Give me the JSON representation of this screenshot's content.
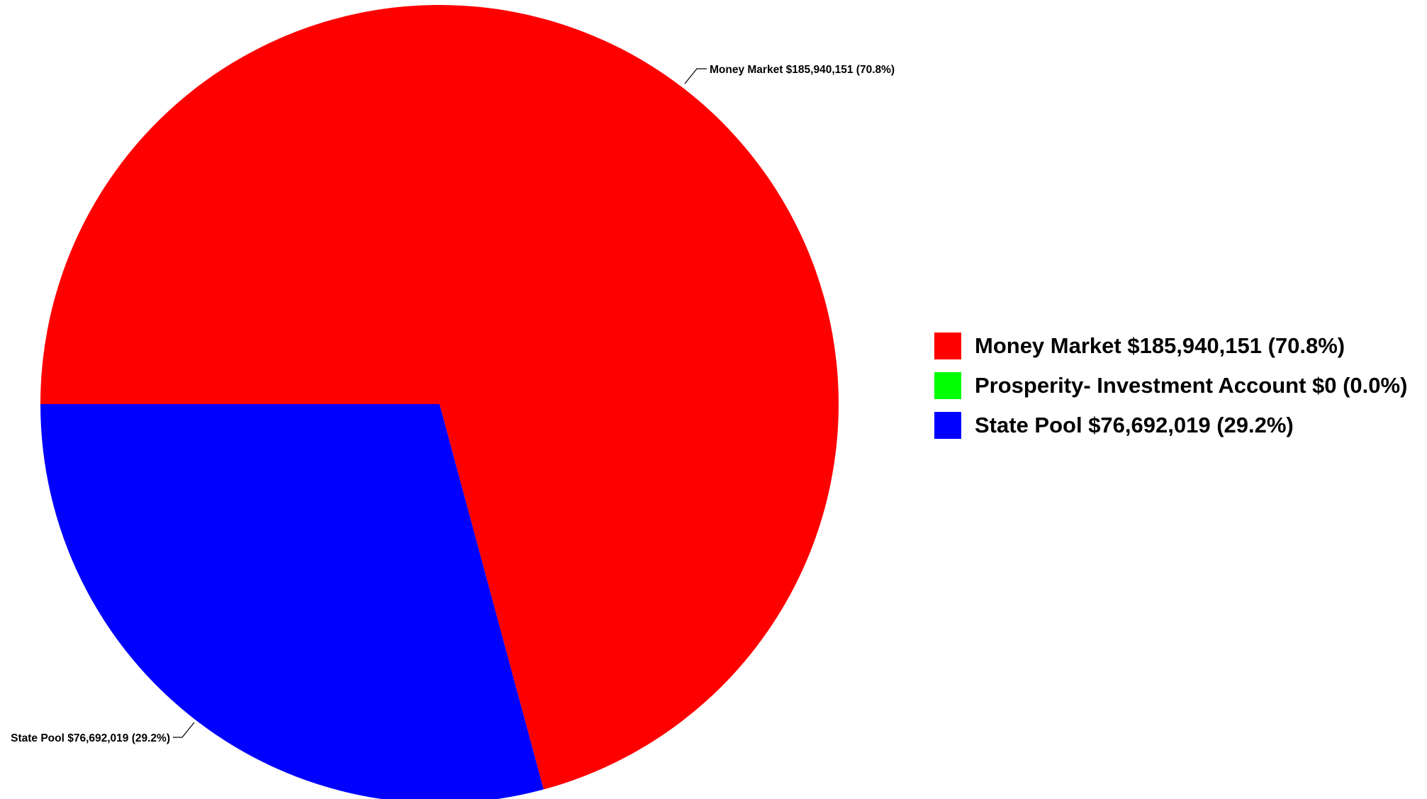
{
  "chart_data": {
    "type": "pie",
    "title": "",
    "slices": [
      {
        "label": "Money Market $185,940,151 (70.8%)",
        "value": 185940151,
        "percent": 70.8,
        "color": "#ff0000"
      },
      {
        "label": "Prosperity- Investment Account $0 (0.0%)",
        "value": 0,
        "percent": 0.0,
        "color": "#00ff00"
      },
      {
        "label": "State Pool $76,692,019 (29.2%)",
        "value": 76692019,
        "percent": 29.2,
        "color": "#0000ff"
      }
    ],
    "start_angle_deg": 180,
    "direction": "clockwise",
    "slice_labels": [
      {
        "slice": 0,
        "text": "Money Market $185,940,151 (70.8%)"
      },
      {
        "slice": 2,
        "text": "State Pool $76,692,019 (29.2%)"
      }
    ],
    "legend": {
      "placement": "right",
      "entries": [
        "Money Market $185,940,151 (70.8%)",
        "Prosperity- Investment Account $0 (0.0%)",
        "State Pool $76,692,019 (29.2%)"
      ]
    }
  }
}
